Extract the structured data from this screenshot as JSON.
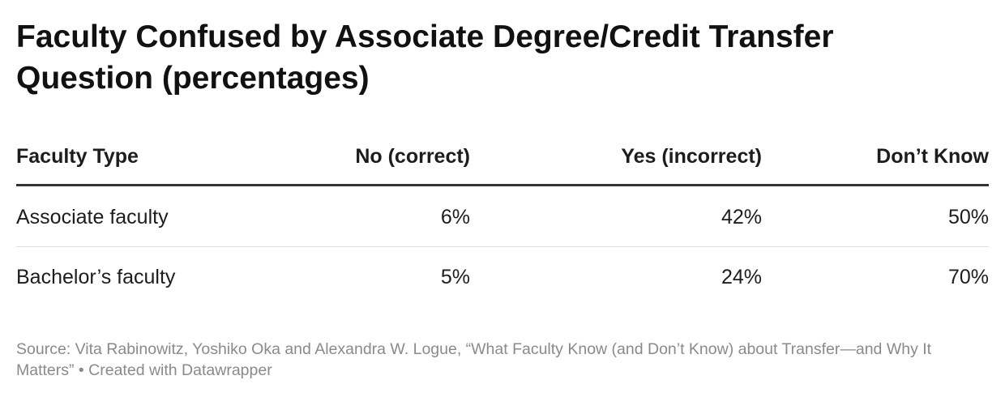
{
  "header": {
    "title": "Faculty Confused by Associate Degree/Credit Transfer Question (percentages)"
  },
  "table": {
    "columns": [
      "Faculty Type",
      "No (correct)",
      "Yes (incorrect)",
      "Don’t Know"
    ],
    "rows": [
      [
        "Associate faculty",
        "6%",
        "42%",
        "50%"
      ],
      [
        "Bachelor’s faculty",
        "5%",
        "24%",
        "70%"
      ]
    ]
  },
  "footer": {
    "source": "Source: Vita Rabinowitz, Yoshiko Oka and Alexandra W. Logue, “What Faculty Know (and Don’t Know) about Transfer—and Why It Matters” • Created with Datawrapper"
  }
}
